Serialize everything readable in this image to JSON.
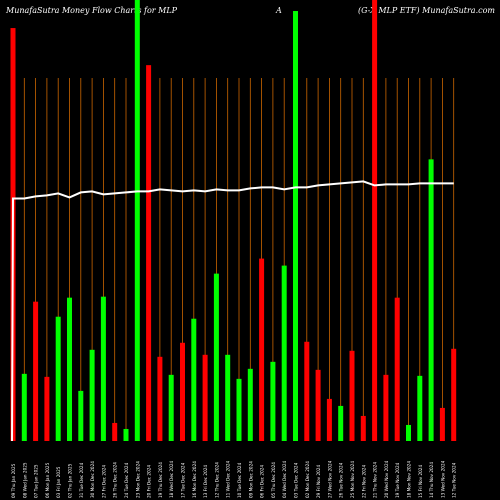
{
  "header": {
    "left": "MunafaSutra  Money Flow  Charts for MLP",
    "mid": "A",
    "right": "(G-X  MLP ETF) MunafaSutra.com"
  },
  "colors": {
    "background": "#000000",
    "up": "#00ff00",
    "down": "#ff0000",
    "grid": "#cc6600",
    "line": "#ffffff",
    "text": "#ffffff"
  },
  "chart_data": {
    "type": "bar",
    "categories": [
      "09 Thu Jan 2025",
      "08 Wed Jan 2025",
      "07 Tue Jan 2025",
      "06 Mon Jan 2025",
      "03 Fri Jan 2025",
      "02 Thu Jan 2025",
      "31 Tue Dec 2024",
      "30 Mon Dec 2024",
      "27 Fri Dec 2024",
      "26 Thu Dec 2024",
      "24 Tue Dec 2024",
      "23 Mon Dec 2024",
      "20 Fri Dec 2024",
      "19 Thu Dec 2024",
      "18 Wed Dec 2024",
      "17 Tue Dec 2024",
      "16 Mon Dec 2024",
      "13 Fri Dec 2024",
      "12 Thu Dec 2024",
      "11 Wed Dec 2024",
      "10 Tue Dec 2024",
      "09 Mon Dec 2024",
      "06 Fri Dec 2024",
      "05 Thu Dec 2024",
      "04 Wed Dec 2024",
      "03 Tue Dec 2024",
      "02 Mon Dec 2024",
      "29 Fri Nov 2024",
      "27 Wed Nov 2024",
      "26 Tue Nov 2024",
      "25 Mon Nov 2024",
      "22 Fri Nov 2024",
      "21 Thu Nov 2024",
      "20 Wed Nov 2024",
      "19 Tue Nov 2024",
      "18 Mon Nov 2024",
      "15 Fri Nov 2024",
      "14 Thu Nov 2024",
      "13 Wed Nov 2024",
      "12 Tue Nov 2024"
    ],
    "bars": [
      {
        "value": 412,
        "color": "red"
      },
      {
        "value": 67,
        "color": "green"
      },
      {
        "value": 139,
        "color": "red"
      },
      {
        "value": 64,
        "color": "red"
      },
      {
        "value": 124,
        "color": "green"
      },
      {
        "value": 143,
        "color": "green"
      },
      {
        "value": 50,
        "color": "green"
      },
      {
        "value": 91,
        "color": "green"
      },
      {
        "value": 144,
        "color": "green"
      },
      {
        "value": 18,
        "color": "red"
      },
      {
        "value": 12,
        "color": "green"
      },
      {
        "value": 440,
        "color": "green"
      },
      {
        "value": 375,
        "color": "red"
      },
      {
        "value": 84,
        "color": "red"
      },
      {
        "value": 66,
        "color": "green"
      },
      {
        "value": 98,
        "color": "red"
      },
      {
        "value": 122,
        "color": "green"
      },
      {
        "value": 86,
        "color": "red"
      },
      {
        "value": 167,
        "color": "green"
      },
      {
        "value": 86,
        "color": "green"
      },
      {
        "value": 62,
        "color": "green"
      },
      {
        "value": 72,
        "color": "green"
      },
      {
        "value": 182,
        "color": "red"
      },
      {
        "value": 79,
        "color": "green"
      },
      {
        "value": 175,
        "color": "green"
      },
      {
        "value": 429,
        "color": "green"
      },
      {
        "value": 99,
        "color": "red"
      },
      {
        "value": 71,
        "color": "red"
      },
      {
        "value": 42,
        "color": "red"
      },
      {
        "value": 35,
        "color": "green"
      },
      {
        "value": 90,
        "color": "red"
      },
      {
        "value": 25,
        "color": "red"
      },
      {
        "value": 440,
        "color": "red"
      },
      {
        "value": 66,
        "color": "red"
      },
      {
        "value": 143,
        "color": "red"
      },
      {
        "value": 16,
        "color": "green"
      },
      {
        "value": 65,
        "color": "green"
      },
      {
        "value": 281,
        "color": "green"
      },
      {
        "value": 33,
        "color": "red"
      },
      {
        "value": 92,
        "color": "red"
      }
    ],
    "line_values": [
      242,
      242,
      244,
      245,
      247,
      243,
      248,
      249,
      246,
      247,
      248,
      249,
      249,
      251,
      250,
      249,
      250,
      249,
      251,
      250,
      250,
      252,
      253,
      253,
      251,
      253,
      253,
      255,
      256,
      257,
      258,
      259,
      255,
      256,
      256,
      256,
      257,
      257,
      257,
      257
    ],
    "line_start": {
      "from": 0,
      "to": 242
    },
    "ylim": [
      0,
      440
    ],
    "grid": true
  }
}
